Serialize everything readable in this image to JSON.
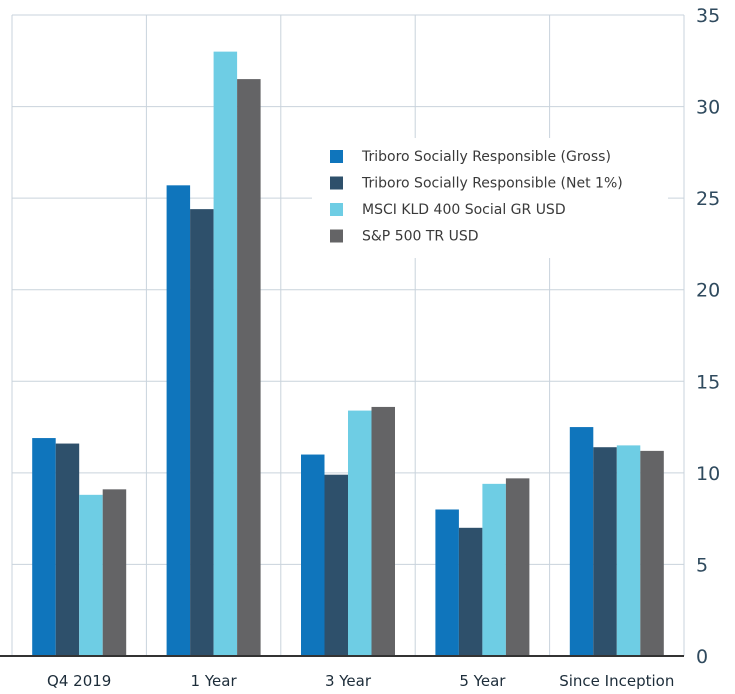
{
  "chart_data": {
    "type": "bar",
    "categories": [
      "Q4 2019",
      "1 Year",
      "3 Year",
      "5 Year",
      "Since Inception"
    ],
    "series": [
      {
        "name": "Triboro Socially Responsible (Gross)",
        "color": "#0f75bc",
        "values": [
          11.9,
          25.7,
          11.0,
          8.0,
          12.5
        ]
      },
      {
        "name": "Triboro Socially Responsible (Net 1%)",
        "color": "#2e506b",
        "values": [
          11.6,
          24.4,
          9.9,
          7.0,
          11.4
        ]
      },
      {
        "name": "MSCI KLD 400 Social GR USD",
        "color": "#6ecde4",
        "values": [
          8.8,
          33.0,
          13.4,
          9.4,
          11.5
        ]
      },
      {
        "name": "S&P 500 TR USD",
        "color": "#646466",
        "values": [
          9.1,
          31.5,
          13.6,
          9.7,
          11.2
        ]
      }
    ],
    "yticks": [
      "0",
      "5",
      "10",
      "15",
      "20",
      "25",
      "30",
      "35"
    ],
    "ylim": [
      0,
      35
    ],
    "grid": true,
    "legend": "upper-center",
    "title": "",
    "xlabel": "",
    "ylabel": ""
  }
}
